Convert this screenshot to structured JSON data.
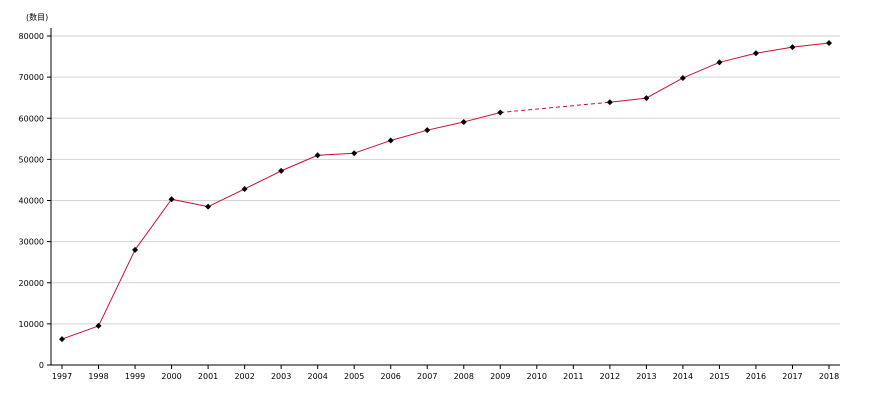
{
  "chart_data": {
    "type": "line",
    "unit_label": "(数目)",
    "title": "",
    "xlabel": "",
    "ylabel": "",
    "ylim": [
      0,
      80000
    ],
    "yticks": [
      0,
      10000,
      20000,
      30000,
      40000,
      50000,
      60000,
      70000,
      80000
    ],
    "ytick_labels": [
      "0",
      "10000",
      "20000",
      "30000",
      "40000",
      "50000",
      "60000",
      "70000",
      "80000"
    ],
    "categories": [
      "1997",
      "1998",
      "1999",
      "2000",
      "2001",
      "2002",
      "2003",
      "2004",
      "2005",
      "2006",
      "2007",
      "2008",
      "2009",
      "2010",
      "2011",
      "2012",
      "2013",
      "2014",
      "2015",
      "2016",
      "2017",
      "2018"
    ],
    "series": [
      {
        "values": [
          6300,
          9500,
          28000,
          40300,
          38500,
          42800,
          47200,
          51000,
          51500,
          54600,
          57100,
          59100,
          61400,
          null,
          null,
          63900,
          64900,
          69800,
          73600,
          75800,
          77300,
          78300
        ]
      }
    ],
    "gap_style": "dashed",
    "grid": true,
    "line_color": "#c8102e",
    "marker_color": "#000000",
    "grid_color": "#d3d3d3"
  }
}
